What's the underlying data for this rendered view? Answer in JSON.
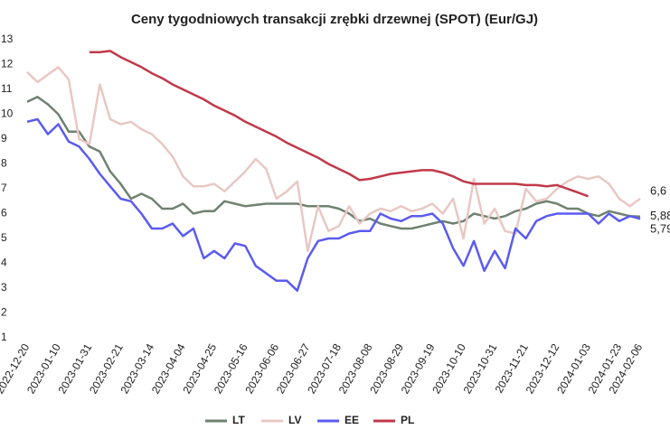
{
  "chart_data": {
    "type": "line",
    "title": "Ceny tygodniowych transakcji zrębki drzewnej (SPOT) (Eur/GJ)",
    "categories": [
      "2022-12-20",
      null,
      null,
      "2023-01-10",
      null,
      null,
      "2023-01-31",
      null,
      null,
      "2023-02-21",
      null,
      null,
      "2023-03-14",
      null,
      null,
      "2023-04-04",
      null,
      null,
      "2023-04-25",
      null,
      null,
      "2023-05-16",
      null,
      null,
      "2023-06-06",
      null,
      null,
      "2023-06-27",
      null,
      null,
      "2023-07-18",
      null,
      null,
      "2023-08-08",
      null,
      null,
      "2023-08-29",
      null,
      null,
      "2023-09-19",
      null,
      null,
      "2023-10-10",
      null,
      null,
      "2023-10-31",
      null,
      null,
      "2023-11-21",
      null,
      null,
      "2023-12-12",
      null,
      null,
      "2024-01-03",
      null,
      null,
      "2024-01-23",
      null,
      "2024-02-06"
    ],
    "series": [
      {
        "name": "LT",
        "color": "#6f8270",
        "values": [
          10.5,
          10.7,
          10.4,
          10.0,
          9.3,
          9.3,
          8.7,
          8.5,
          7.7,
          7.2,
          6.6,
          6.8,
          6.6,
          6.2,
          6.2,
          6.4,
          6.0,
          6.1,
          6.1,
          6.5,
          6.4,
          6.3,
          6.35,
          6.4,
          6.4,
          6.4,
          6.4,
          6.3,
          6.3,
          6.3,
          6.2,
          6.0,
          5.7,
          5.8,
          5.6,
          5.5,
          5.4,
          5.4,
          5.5,
          5.6,
          5.7,
          5.6,
          5.7,
          6.0,
          5.9,
          5.8,
          5.9,
          6.1,
          6.2,
          6.4,
          6.5,
          6.4,
          6.2,
          6.2,
          6.0,
          5.9,
          6.1,
          6.0,
          5.9,
          5.88
        ],
        "value_labels": [
          null,
          null,
          null,
          null,
          null,
          null,
          null,
          null,
          null,
          null,
          null,
          null,
          null,
          null,
          null,
          null,
          null,
          null,
          null,
          null,
          null,
          null,
          null,
          null,
          null,
          null,
          null,
          null,
          null,
          null,
          null,
          null,
          null,
          null,
          null,
          null,
          null,
          null,
          null,
          null,
          null,
          null,
          null,
          null,
          null,
          null,
          null,
          null,
          null,
          null,
          null,
          null,
          null,
          null,
          null,
          null,
          null,
          null,
          null,
          "5,88"
        ]
      },
      {
        "name": "LV",
        "color": "#e8c8c4",
        "values": [
          11.7,
          11.3,
          11.6,
          11.9,
          11.4,
          9.0,
          8.8,
          11.2,
          9.8,
          9.6,
          9.7,
          9.4,
          9.2,
          8.8,
          8.3,
          7.5,
          7.1,
          7.1,
          7.2,
          6.9,
          7.3,
          7.7,
          8.2,
          7.8,
          6.6,
          6.9,
          7.3,
          4.5,
          6.3,
          5.3,
          5.5,
          6.3,
          5.6,
          6.0,
          6.2,
          6.1,
          6.3,
          6.1,
          6.2,
          6.4,
          6.0,
          6.6,
          5.0,
          7.4,
          5.6,
          6.2,
          5.3,
          5.2,
          7.0,
          6.5,
          6.6,
          7.0,
          7.3,
          7.5,
          7.4,
          7.5,
          7.2,
          6.6,
          6.3,
          6.6
        ],
        "value_labels": [
          null,
          null,
          null,
          null,
          null,
          null,
          null,
          null,
          null,
          null,
          null,
          null,
          null,
          null,
          null,
          null,
          null,
          null,
          null,
          null,
          null,
          null,
          null,
          null,
          null,
          null,
          null,
          null,
          null,
          null,
          null,
          null,
          null,
          null,
          null,
          null,
          null,
          null,
          null,
          null,
          null,
          null,
          null,
          null,
          null,
          null,
          null,
          null,
          null,
          null,
          null,
          null,
          null,
          null,
          null,
          null,
          null,
          null,
          null,
          "6,6"
        ]
      },
      {
        "name": "EE",
        "color": "#5b5bf0",
        "values": [
          9.7,
          9.8,
          9.2,
          9.6,
          8.9,
          8.7,
          8.2,
          7.6,
          7.1,
          6.6,
          6.5,
          6.0,
          5.4,
          5.4,
          5.6,
          5.1,
          5.4,
          4.2,
          4.5,
          4.2,
          4.8,
          4.7,
          3.9,
          3.6,
          3.3,
          3.3,
          2.9,
          4.2,
          4.9,
          5.0,
          5.0,
          5.2,
          5.3,
          5.3,
          6.0,
          5.8,
          5.7,
          5.9,
          5.9,
          6.0,
          5.6,
          4.6,
          3.9,
          4.9,
          3.7,
          4.5,
          3.8,
          5.4,
          5.0,
          5.7,
          5.9,
          6.0,
          6.0,
          6.0,
          6.0,
          5.6,
          6.0,
          5.7,
          5.9,
          5.79
        ],
        "value_labels": [
          null,
          null,
          null,
          null,
          null,
          null,
          null,
          null,
          null,
          null,
          null,
          null,
          null,
          null,
          null,
          null,
          null,
          null,
          null,
          null,
          null,
          null,
          null,
          null,
          null,
          null,
          null,
          null,
          null,
          null,
          null,
          null,
          null,
          null,
          null,
          null,
          null,
          null,
          null,
          null,
          null,
          null,
          null,
          null,
          null,
          null,
          null,
          null,
          null,
          null,
          null,
          null,
          null,
          null,
          null,
          null,
          null,
          null,
          null,
          "5,79"
        ]
      },
      {
        "name": "PL",
        "color": "#c0394a",
        "values": [
          null,
          null,
          null,
          null,
          null,
          null,
          12.5,
          12.5,
          12.55,
          12.3,
          12.1,
          11.9,
          11.65,
          11.45,
          11.2,
          11.0,
          10.8,
          10.6,
          10.35,
          10.15,
          9.95,
          9.7,
          9.5,
          9.3,
          9.1,
          8.85,
          8.65,
          8.45,
          8.25,
          8.0,
          7.8,
          7.6,
          7.35,
          7.4,
          7.5,
          7.6,
          7.65,
          7.7,
          7.75,
          7.75,
          7.65,
          7.5,
          7.3,
          7.2,
          7.2,
          7.2,
          7.2,
          7.2,
          7.15,
          7.15,
          7.1,
          7.15,
          7.0,
          6.85,
          6.7,
          null,
          null,
          null,
          null,
          null
        ]
      }
    ],
    "ylim": [
      1,
      13
    ],
    "yticks": [
      1,
      2,
      3,
      4,
      5,
      6,
      7,
      8,
      9,
      10,
      11,
      12,
      13
    ],
    "grid": false,
    "legend": "bottom"
  }
}
